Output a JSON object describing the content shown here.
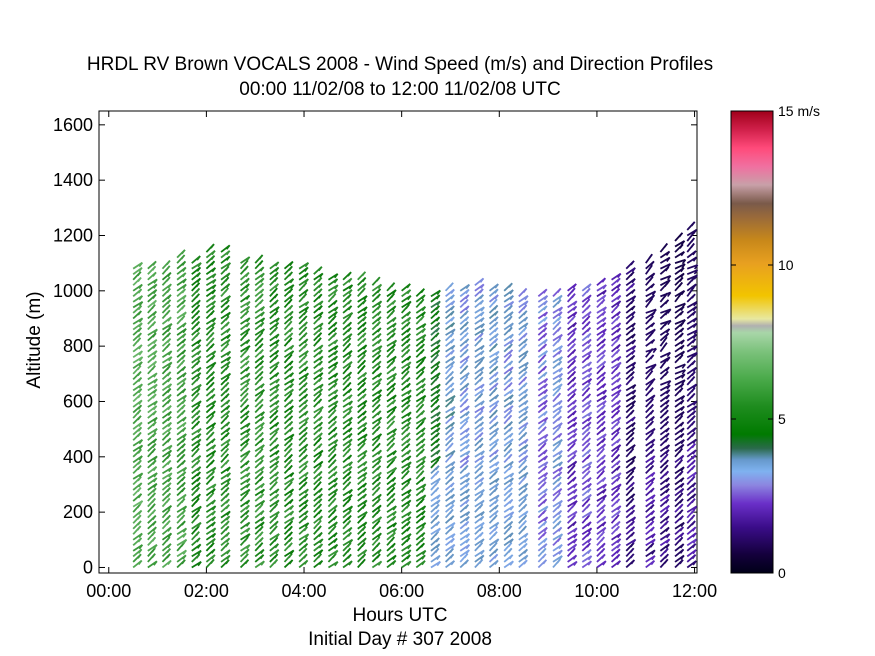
{
  "chart_data": {
    "type": "wind-barb-profile",
    "title": "HRDL RV Brown VOCALS 2008 - Wind Speed (m/s) and Direction Profiles",
    "subtitle": "00:00 11/02/08 to 12:00 11/02/08  UTC",
    "xlabel": "Hours UTC",
    "footer": "Initial Day # 307  2008",
    "ylabel": "Altitude (m)",
    "xlim": [
      -0.2,
      12.05
    ],
    "ylim": [
      -20,
      1650
    ],
    "x_ticks": [
      0,
      2,
      4,
      6,
      8,
      10,
      12
    ],
    "x_tick_labels": [
      "00:00",
      "02:00",
      "04:00",
      "06:00",
      "08:00",
      "10:00",
      "12:00"
    ],
    "y_ticks": [
      0,
      200,
      400,
      600,
      800,
      1000,
      1200,
      1400,
      1600
    ],
    "y_tick_labels": [
      "0",
      "200",
      "400",
      "600",
      "800",
      "1000",
      "1200",
      "1400",
      "1600"
    ],
    "colorbar": {
      "label_max": "15 m/s",
      "ticks": [
        0,
        5,
        10,
        15
      ],
      "tick_labels": [
        "0",
        "5",
        "10",
        "15 m/s"
      ],
      "range": [
        0,
        15
      ]
    },
    "profiles": [
      {
        "time": 0.5,
        "top": 1090,
        "speed": 5.8
      },
      {
        "time": 0.8,
        "top": 1085,
        "speed": 5.7
      },
      {
        "time": 1.1,
        "top": 1080,
        "speed": 5.6
      },
      {
        "time": 1.4,
        "top": 1120,
        "speed": 5.6
      },
      {
        "time": 1.7,
        "top": 1100,
        "speed": 5.0
      },
      {
        "time": 2.0,
        "top": 1150,
        "speed": 5.0
      },
      {
        "time": 2.3,
        "top": 1150,
        "speed": 5.1
      },
      {
        "time": 2.7,
        "top": 1110,
        "speed": 5.2
      },
      {
        "time": 3.0,
        "top": 1100,
        "speed": 5.2
      },
      {
        "time": 3.3,
        "top": 1090,
        "speed": 5.1
      },
      {
        "time": 3.6,
        "top": 1080,
        "speed": 5.0
      },
      {
        "time": 3.9,
        "top": 1080,
        "speed": 5.1
      },
      {
        "time": 4.2,
        "top": 1060,
        "speed": 5.0
      },
      {
        "time": 4.5,
        "top": 1050,
        "speed": 5.0
      },
      {
        "time": 4.8,
        "top": 1050,
        "speed": 5.0
      },
      {
        "time": 5.1,
        "top": 1040,
        "speed": 5.0
      },
      {
        "time": 5.4,
        "top": 1020,
        "speed": 5.0
      },
      {
        "time": 5.7,
        "top": 1000,
        "speed": 5.0
      },
      {
        "time": 6.0,
        "top": 1000,
        "speed": 5.0
      },
      {
        "time": 6.3,
        "top": 990,
        "speed": 5.0
      },
      {
        "time": 6.6,
        "top": 980,
        "speed": 4.3
      },
      {
        "time": 6.9,
        "top": 1000,
        "speed": 3.2
      },
      {
        "time": 7.2,
        "top": 1010,
        "speed": 3.0
      },
      {
        "time": 7.5,
        "top": 1020,
        "speed": 3.0
      },
      {
        "time": 7.8,
        "top": 1000,
        "speed": 3.1
      },
      {
        "time": 8.1,
        "top": 1000,
        "speed": 3.0
      },
      {
        "time": 8.4,
        "top": 990,
        "speed": 3.0
      },
      {
        "time": 8.8,
        "top": 980,
        "speed": 2.6
      },
      {
        "time": 9.1,
        "top": 990,
        "speed": 2.8
      },
      {
        "time": 9.4,
        "top": 1000,
        "speed": 2.0
      },
      {
        "time": 9.7,
        "top": 1010,
        "speed": 2.2
      },
      {
        "time": 10.0,
        "top": 1030,
        "speed": 2.0
      },
      {
        "time": 10.3,
        "top": 1050,
        "speed": 2.0
      },
      {
        "time": 10.6,
        "top": 1090,
        "speed": 1.2
      },
      {
        "time": 11.0,
        "top": 1110,
        "speed": 1.6
      },
      {
        "time": 11.3,
        "top": 1150,
        "speed": 1.4
      },
      {
        "time": 11.6,
        "top": 1180,
        "speed": 1.2
      },
      {
        "time": 11.85,
        "top": 1220,
        "speed": 1.6
      }
    ],
    "grid": false
  },
  "colors": {
    "dark_green": "#007a00",
    "mid_green": "#3c9e3c",
    "light_blue": "#7fa9e6",
    "purple": "#6a2fc8",
    "navy": "#1a0a5a"
  }
}
